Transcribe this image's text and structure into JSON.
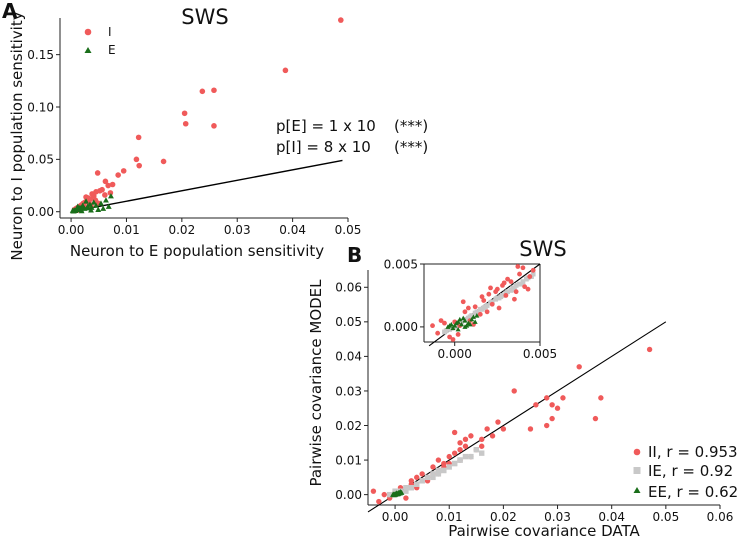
{
  "panel_a": {
    "letter": "A",
    "annotation_line1": "p[E] = 1 x 10",
    "annotation_stars1": "(***)",
    "annotation_line2": "p[I] = 8 x 10",
    "annotation_stars2": "(***)"
  },
  "panel_b": {
    "letter": "B"
  },
  "chart_data": [
    {
      "type": "scatter",
      "panel": "A",
      "title": "SWS",
      "xlabel": "Neuron to E population sensitivity",
      "ylabel": "Neuron to I population sensitivity",
      "xlim": [
        -0.002,
        0.05
      ],
      "ylim": [
        -0.006,
        0.185
      ],
      "xticks": [
        "0.00",
        "0.01",
        "0.02",
        "0.03",
        "0.04",
        "0.05"
      ],
      "xtick_values": [
        0,
        0.01,
        0.02,
        0.03,
        0.04,
        0.05
      ],
      "yticks": [
        "0.00",
        "0.05",
        "0.10",
        "0.15"
      ],
      "ytick_values": [
        0,
        0.05,
        0.1,
        0.15
      ],
      "legend": [
        "I",
        "E"
      ],
      "legend_position": "top-left",
      "colors": {
        "I": "#f05a5a",
        "E": "#1a6e1a",
        "line": "#000000"
      },
      "reference_line": {
        "x": [
          0,
          0.049
        ],
        "y": [
          0,
          0.049
        ]
      },
      "series": [
        {
          "name": "I",
          "marker": "circle",
          "x": [
            0.0487,
            0.0387,
            0.0258,
            0.0258,
            0.0237,
            0.0205,
            0.0207,
            0.0122,
            0.0118,
            0.0123,
            0.0167,
            0.0095,
            0.0085,
            0.0075,
            0.0067,
            0.0062,
            0.0052,
            0.0048,
            0.0045,
            0.0041,
            0.0038,
            0.0035,
            0.0031,
            0.0028,
            0.0025,
            0.0022,
            0.0018,
            0.0015,
            0.0012,
            0.0009,
            0.0006,
            0.0056,
            0.0044,
            0.0033,
            0.0027,
            0.0019,
            0.0013,
            0.0061,
            0.0071,
            0.0049,
            0.0036,
            0.0024,
            0.0016,
            0.0011,
            0.0008
          ],
          "y": [
            0.183,
            0.135,
            0.116,
            0.082,
            0.115,
            0.094,
            0.084,
            0.071,
            0.05,
            0.044,
            0.048,
            0.039,
            0.035,
            0.026,
            0.025,
            0.029,
            0.02,
            0.037,
            0.019,
            0.015,
            0.017,
            0.012,
            0.013,
            0.01,
            0.009,
            0.008,
            0.006,
            0.005,
            0.004,
            0.003,
            0.002,
            0.021,
            0.011,
            0.0075,
            0.014,
            0.0065,
            0.0035,
            0.016,
            0.018,
            0.008,
            0.0055,
            0.0045,
            0.0025,
            0.0015,
            0.001
          ]
        },
        {
          "name": "E",
          "marker": "triangle",
          "x": [
            0.0072,
            0.0068,
            0.0063,
            0.0058,
            0.0054,
            0.0049,
            0.0045,
            0.0041,
            0.0037,
            0.0034,
            0.003,
            0.0027,
            0.0024,
            0.0021,
            0.0018,
            0.0016,
            0.0014,
            0.0012,
            0.001,
            0.0008,
            0.0006,
            0.0005,
            0.0004,
            0.0003,
            0.0015,
            0.0022,
            0.0029,
            0.0036,
            0.0011,
            0.0019
          ],
          "y": [
            0.015,
            0.005,
            0.011,
            0.003,
            0.008,
            0.002,
            0.006,
            0.009,
            0.004,
            0.007,
            0.005,
            0.01,
            0.003,
            0.006,
            0.002,
            0.004,
            0.003,
            0.005,
            0.002,
            0.001,
            0.0015,
            0.0008,
            0.0005,
            0.0012,
            0.0025,
            0.0045,
            0.0035,
            0.0015,
            0.003,
            0.0008
          ]
        }
      ]
    },
    {
      "type": "scatter",
      "panel": "B",
      "title": "SWS",
      "xlabel": "Pairwise covariance DATA",
      "ylabel": "Pairwise covariance MODEL",
      "xlim": [
        -0.005,
        0.06
      ],
      "ylim": [
        -0.003,
        0.065
      ],
      "xticks": [
        "0.00",
        "0.01",
        "0.02",
        "0.03",
        "0.04",
        "0.05",
        "0.06"
      ],
      "xtick_values": [
        0,
        0.01,
        0.02,
        0.03,
        0.04,
        0.05,
        0.06
      ],
      "yticks": [
        "0.00",
        "0.01",
        "0.02",
        "0.03",
        "0.04",
        "0.05",
        "0.06"
      ],
      "ytick_values": [
        0,
        0.01,
        0.02,
        0.03,
        0.04,
        0.05,
        0.06
      ],
      "legend": [
        "II, r = 0.953",
        "IE, r = 0.92",
        "EE, r = 0.62"
      ],
      "legend_position": "bottom-right",
      "colors": {
        "II": "#f05a5a",
        "IE": "#c8c8c8",
        "EE": "#1a6e1a",
        "line": "#000000"
      },
      "identity_line": {
        "x": [
          -0.005,
          0.05
        ],
        "y": [
          -0.005,
          0.05
        ]
      },
      "series": [
        {
          "name": "II, r = 0.953",
          "marker": "circle",
          "x": [
            0.047,
            0.038,
            0.037,
            0.034,
            0.029,
            0.028,
            0.029,
            0.028,
            0.03,
            0.025,
            0.022,
            0.019,
            0.017,
            0.016,
            0.014,
            0.013,
            0.012,
            0.011,
            0.012,
            0.01,
            0.009,
            0.008,
            0.008,
            0.007,
            0.006,
            0.005,
            0.004,
            0.003,
            0.002,
            0.001,
            0.0,
            -0.001,
            -0.002,
            -0.003,
            0.011,
            0.013,
            0.015,
            0.009,
            0.007,
            0.005,
            0.003,
            0.004,
            0.006,
            0.01,
            0.014,
            0.012,
            0.016,
            0.02,
            0.018,
            0.026,
            0.031,
            0.008,
            0.002,
            -0.004,
            0.001
          ],
          "y": [
            0.042,
            0.028,
            0.022,
            0.037,
            0.026,
            0.028,
            0.022,
            0.02,
            0.025,
            0.019,
            0.03,
            0.021,
            0.019,
            0.016,
            0.017,
            0.016,
            0.013,
            0.012,
            0.015,
            0.011,
            0.009,
            0.007,
            0.01,
            0.006,
            0.005,
            0.004,
            0.005,
            0.003,
            0.002,
            0.001,
            0.001,
            -0.001,
            0.0,
            -0.002,
            0.018,
            0.014,
            0.013,
            0.008,
            0.008,
            0.006,
            0.004,
            0.002,
            0.004,
            0.009,
            0.011,
            0.01,
            0.014,
            0.019,
            0.017,
            0.026,
            0.028,
            0.006,
            -0.001,
            0.001,
            0.002
          ]
        },
        {
          "name": "IE, r = 0.92",
          "marker": "square",
          "x": [
            0.016,
            0.014,
            0.012,
            0.011,
            0.01,
            0.009,
            0.008,
            0.007,
            0.006,
            0.005,
            0.004,
            0.003,
            0.002,
            0.001,
            0.0,
            -0.001,
            0.013,
            0.011,
            0.009,
            0.007,
            0.005,
            0.003,
            0.015,
            0.012,
            0.008,
            0.004,
            0.002,
            0.0
          ],
          "y": [
            0.012,
            0.011,
            0.01,
            0.009,
            0.008,
            0.007,
            0.006,
            0.006,
            0.005,
            0.004,
            0.003,
            0.002,
            0.002,
            0.001,
            0.0,
            0.0,
            0.011,
            0.009,
            0.007,
            0.005,
            0.004,
            0.002,
            0.013,
            0.01,
            0.007,
            0.003,
            0.001,
            0.001
          ]
        },
        {
          "name": "EE, r = 0.62",
          "marker": "triangle",
          "x": [
            0.0012,
            0.0009,
            0.0006,
            0.0004,
            0.0002,
            0.0,
            -0.0002,
            -0.0004,
            0.001,
            0.0007,
            0.0003,
            0.0001,
            -0.0001,
            0.0005,
            0.0008,
            0.0002,
            -0.0003,
            0.0006
          ],
          "y": [
            0.0006,
            0.0004,
            0.0003,
            0.0002,
            0.0001,
            0.0,
            -0.0001,
            0.0,
            0.0008,
            0.0005,
            0.0004,
            0.0002,
            0.0001,
            0.0002,
            0.0006,
            0.0003,
            0.0001,
            0.0005
          ]
        }
      ]
    },
    {
      "type": "scatter",
      "panel": "B-inset",
      "title": "",
      "xlim": [
        -0.0018,
        0.005
      ],
      "ylim": [
        -0.0012,
        0.005
      ],
      "xticks": [
        "0.000",
        "0.005"
      ],
      "xtick_values": [
        0,
        0.005
      ],
      "yticks": [
        "0.000",
        "0.005"
      ],
      "ytick_values": [
        0,
        0.005
      ],
      "identity_line": {
        "x": [
          -0.0015,
          0.005
        ],
        "y": [
          -0.0015,
          0.005
        ]
      },
      "series": [
        {
          "name": "IE",
          "marker": "square",
          "x": [
            0.0045,
            0.0042,
            0.0039,
            0.0036,
            0.0033,
            0.003,
            0.0027,
            0.0024,
            0.0021,
            0.0018,
            0.0015,
            0.0012,
            0.0009,
            0.0006,
            0.0003,
            0.0,
            -0.0003,
            -0.0006,
            0.004,
            0.0034,
            0.0028,
            0.0022,
            0.0016,
            0.001,
            0.0004,
            -0.0002,
            0.0046,
            0.0038,
            0.0031,
            0.0025,
            0.0019,
            0.0013,
            0.0007,
            0.0001,
            -0.0005,
            0.0043,
            0.0035,
            0.0026,
            0.0017,
            0.0008
          ],
          "y": [
            0.004,
            0.0038,
            0.0034,
            0.0033,
            0.0029,
            0.0027,
            0.0024,
            0.0022,
            0.0019,
            0.0016,
            0.0014,
            0.0011,
            0.0008,
            0.0006,
            0.0003,
            0.0,
            -0.0002,
            -0.0004,
            0.0036,
            0.0031,
            0.0025,
            0.002,
            0.0014,
            0.0009,
            0.0004,
            -0.0001,
            0.0042,
            0.0034,
            0.0028,
            0.0023,
            0.0017,
            0.0012,
            0.0006,
            0.0001,
            -0.0003,
            0.0039,
            0.003,
            0.0023,
            0.0015,
            0.0007
          ]
        },
        {
          "name": "II",
          "marker": "circle",
          "x": [
            0.0048,
            0.0046,
            0.0044,
            0.0041,
            0.0038,
            0.0036,
            0.0033,
            0.003,
            0.0028,
            0.0025,
            0.0022,
            0.002,
            0.0017,
            0.0015,
            0.0012,
            0.0009,
            0.0006,
            0.0003,
            0.0,
            -0.0003,
            -0.0006,
            -0.001,
            -0.0013,
            0.004,
            0.0035,
            0.0031,
            0.0026,
            0.0021,
            0.0016,
            0.0011,
            0.0005,
            -0.0001,
            0.0043,
            0.0029,
            0.0019,
            0.0008,
            0.0002,
            -0.0008,
            0.0037,
            0.0024
          ],
          "y": [
            0.005,
            0.0045,
            0.004,
            0.0032,
            0.0042,
            0.0028,
            0.0036,
            0.0025,
            0.0033,
            0.003,
            0.0018,
            0.0026,
            0.0021,
            0.001,
            0.0016,
            0.0005,
            0.0012,
            0.0001,
            0.0004,
            -0.0008,
            0.0003,
            -0.0005,
            0.0001,
            0.0047,
            0.0022,
            0.0038,
            0.0015,
            0.0031,
            0.0024,
            0.0002,
            0.002,
            -0.001,
            0.003,
            0.0035,
            0.0012,
            0.0015,
            -0.0006,
            0.0005,
            0.0048,
            0.0028
          ]
        },
        {
          "name": "EE",
          "marker": "triangle",
          "x": [
            0.0012,
            0.001,
            0.0008,
            0.0006,
            0.0004,
            0.0002,
            0.0,
            -0.0002,
            -0.0004,
            0.0011,
            0.0007,
            0.0003,
            -0.0001,
            0.0009,
            0.0005,
            0.0001,
            -0.0003,
            0.0013,
            0.0006,
            0.0002
          ],
          "y": [
            0.0004,
            0.0006,
            0.0003,
            0.0005,
            0.0002,
            0.0004,
            0.0001,
            0.0002,
            0.0,
            0.0008,
            0.0001,
            0.0006,
            -0.0001,
            0.0002,
            0.0007,
            0.0003,
            0.0001,
            0.0009,
            0.0,
            -0.0002
          ]
        }
      ]
    }
  ]
}
